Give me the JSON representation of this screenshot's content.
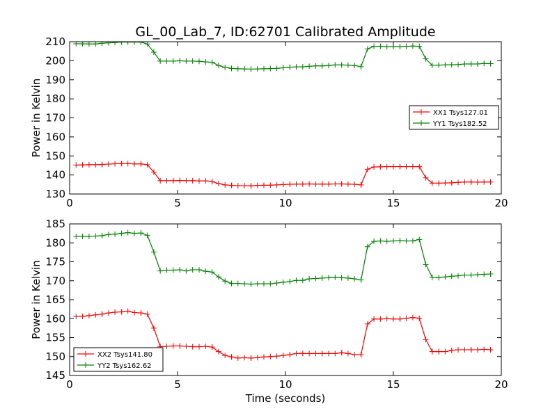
{
  "figure": {
    "title": "GL_00_Lab_7, ID:62701 Calibrated Amplitude",
    "xlabel": "Time (seconds)"
  },
  "chart_data": [
    {
      "type": "line",
      "ylabel": "Power in Kelvin",
      "xlim": [
        0,
        20
      ],
      "ylim": [
        130,
        210
      ],
      "xticks": [
        "0",
        "5",
        "10",
        "15",
        "20"
      ],
      "yticks": [
        "130",
        "140",
        "150",
        "160",
        "170",
        "180",
        "190",
        "200",
        "210"
      ],
      "legend_position": "center-right",
      "series": [
        {
          "name": "XX1 Tsys127.01",
          "color": "#ff0000",
          "x": [
            0.3,
            0.6,
            0.9,
            1.2,
            1.5,
            1.8,
            2.1,
            2.4,
            2.7,
            3.0,
            3.3,
            3.6,
            3.9,
            4.2,
            4.5,
            4.8,
            5.1,
            5.4,
            5.7,
            6.0,
            6.3,
            6.6,
            6.9,
            7.2,
            7.5,
            7.8,
            8.1,
            8.4,
            8.7,
            9.0,
            9.3,
            9.6,
            9.9,
            10.2,
            10.5,
            10.8,
            11.1,
            11.4,
            11.7,
            12.0,
            12.3,
            12.6,
            12.9,
            13.2,
            13.5,
            13.8,
            14.1,
            14.4,
            14.7,
            15.0,
            15.3,
            15.6,
            15.9,
            16.2,
            16.5,
            16.8,
            17.1,
            17.4,
            17.7,
            18.0,
            18.3,
            18.6,
            18.9,
            19.2,
            19.5
          ],
          "y": [
            145.2,
            145.3,
            145.4,
            145.4,
            145.5,
            145.7,
            145.9,
            146.0,
            146.0,
            145.8,
            145.8,
            145.4,
            141.5,
            137.0,
            137.0,
            137.0,
            137.1,
            137.0,
            137.0,
            136.9,
            136.9,
            136.5,
            135.5,
            134.8,
            134.5,
            134.4,
            134.4,
            134.3,
            134.5,
            134.6,
            134.6,
            134.8,
            135.0,
            135.1,
            135.2,
            135.2,
            135.3,
            135.2,
            135.2,
            135.2,
            135.3,
            135.3,
            135.2,
            135.1,
            134.8,
            143.0,
            144.2,
            144.3,
            144.4,
            144.4,
            144.4,
            144.4,
            144.4,
            144.4,
            138.5,
            135.7,
            135.7,
            135.8,
            135.9,
            136.1,
            136.3,
            136.3,
            136.2,
            136.3,
            136.3
          ]
        },
        {
          "name": "YY1 Tsys182.52",
          "color": "#008000",
          "x": [
            0.3,
            0.6,
            0.9,
            1.2,
            1.5,
            1.8,
            2.1,
            2.4,
            2.7,
            3.0,
            3.3,
            3.6,
            3.9,
            4.2,
            4.5,
            4.8,
            5.1,
            5.4,
            5.7,
            6.0,
            6.3,
            6.6,
            6.9,
            7.2,
            7.5,
            7.8,
            8.1,
            8.4,
            8.7,
            9.0,
            9.3,
            9.6,
            9.9,
            10.2,
            10.5,
            10.8,
            11.1,
            11.4,
            11.7,
            12.0,
            12.3,
            12.6,
            12.9,
            13.2,
            13.5,
            13.8,
            14.1,
            14.4,
            14.7,
            15.0,
            15.3,
            15.6,
            15.9,
            16.2,
            16.5,
            16.8,
            17.1,
            17.4,
            17.7,
            18.0,
            18.3,
            18.6,
            18.9,
            19.2,
            19.5
          ],
          "y": [
            208.9,
            208.9,
            208.8,
            208.8,
            209.2,
            209.4,
            209.6,
            209.8,
            209.8,
            209.8,
            209.8,
            208.8,
            204.5,
            199.8,
            199.8,
            199.8,
            200.0,
            199.8,
            199.8,
            199.7,
            199.4,
            199.2,
            197.5,
            196.5,
            196.0,
            195.8,
            195.7,
            195.6,
            195.7,
            195.8,
            195.9,
            196.0,
            196.3,
            196.6,
            196.8,
            196.8,
            197.1,
            197.3,
            197.3,
            197.5,
            197.8,
            197.8,
            197.7,
            197.5,
            196.9,
            206.2,
            207.6,
            207.6,
            207.4,
            207.4,
            207.4,
            207.6,
            207.7,
            207.6,
            201.0,
            197.6,
            197.7,
            197.8,
            197.9,
            198.0,
            198.3,
            198.3,
            198.3,
            198.6,
            198.5
          ]
        }
      ]
    },
    {
      "type": "line",
      "ylabel": "Power in Kelvin",
      "xlim": [
        0,
        20
      ],
      "ylim": [
        145,
        185
      ],
      "xticks": [
        "0",
        "5",
        "10",
        "15",
        "20"
      ],
      "yticks": [
        "145",
        "150",
        "155",
        "160",
        "165",
        "170",
        "175",
        "180",
        "185"
      ],
      "legend_position": "lower-left",
      "series": [
        {
          "name": "XX2 Tsys141.80",
          "color": "#ff0000",
          "x": [
            0.3,
            0.6,
            0.9,
            1.2,
            1.5,
            1.8,
            2.1,
            2.4,
            2.7,
            3.0,
            3.3,
            3.6,
            3.9,
            4.2,
            4.5,
            4.8,
            5.1,
            5.4,
            5.7,
            6.0,
            6.3,
            6.6,
            6.9,
            7.2,
            7.5,
            7.8,
            8.1,
            8.4,
            8.7,
            9.0,
            9.3,
            9.6,
            9.9,
            10.2,
            10.5,
            10.8,
            11.1,
            11.4,
            11.7,
            12.0,
            12.3,
            12.6,
            12.9,
            13.2,
            13.5,
            13.8,
            14.1,
            14.4,
            14.7,
            15.0,
            15.3,
            15.6,
            15.9,
            16.2,
            16.5,
            16.8,
            17.1,
            17.4,
            17.7,
            18.0,
            18.3,
            18.6,
            18.9,
            19.2,
            19.5
          ],
          "y": [
            160.6,
            160.6,
            160.8,
            161.0,
            161.2,
            161.5,
            161.7,
            161.8,
            162.0,
            161.6,
            161.5,
            161.2,
            157.5,
            152.6,
            152.7,
            152.8,
            152.8,
            152.7,
            152.6,
            152.6,
            152.7,
            152.5,
            151.3,
            150.3,
            149.9,
            149.6,
            149.7,
            149.6,
            149.7,
            149.9,
            150.0,
            150.1,
            150.3,
            150.5,
            150.8,
            150.8,
            150.8,
            150.8,
            150.8,
            150.8,
            150.8,
            151.0,
            150.8,
            150.5,
            150.5,
            158.6,
            159.9,
            159.9,
            160.0,
            159.9,
            159.9,
            160.1,
            160.3,
            160.1,
            154.5,
            151.3,
            151.3,
            151.3,
            151.6,
            151.8,
            151.8,
            151.8,
            151.8,
            151.9,
            151.8
          ]
        },
        {
          "name": "YY2 Tsys162.62",
          "color": "#008000",
          "x": [
            0.3,
            0.6,
            0.9,
            1.2,
            1.5,
            1.8,
            2.1,
            2.4,
            2.7,
            3.0,
            3.3,
            3.6,
            3.9,
            4.2,
            4.5,
            4.8,
            5.1,
            5.4,
            5.7,
            6.0,
            6.3,
            6.6,
            6.9,
            7.2,
            7.5,
            7.8,
            8.1,
            8.4,
            8.7,
            9.0,
            9.3,
            9.6,
            9.9,
            10.2,
            10.5,
            10.8,
            11.1,
            11.4,
            11.7,
            12.0,
            12.3,
            12.6,
            12.9,
            13.2,
            13.5,
            13.8,
            14.1,
            14.4,
            14.7,
            15.0,
            15.3,
            15.6,
            15.9,
            16.2,
            16.5,
            16.8,
            17.1,
            17.4,
            17.7,
            18.0,
            18.3,
            18.6,
            18.9,
            19.2,
            19.5
          ],
          "y": [
            181.7,
            181.7,
            181.7,
            181.8,
            181.9,
            182.2,
            182.3,
            182.5,
            182.7,
            182.5,
            182.6,
            182.0,
            177.6,
            172.6,
            172.8,
            172.8,
            172.9,
            172.6,
            172.9,
            172.9,
            172.5,
            172.3,
            171.0,
            169.9,
            169.3,
            169.3,
            169.2,
            169.1,
            169.2,
            169.2,
            169.2,
            169.4,
            169.6,
            169.8,
            170.1,
            170.1,
            170.5,
            170.6,
            170.7,
            170.8,
            170.9,
            170.8,
            170.7,
            170.5,
            170.2,
            179.0,
            180.4,
            180.5,
            180.4,
            180.5,
            180.6,
            180.5,
            180.5,
            180.9,
            174.3,
            170.9,
            170.8,
            171.0,
            171.2,
            171.3,
            171.5,
            171.5,
            171.6,
            171.7,
            171.8
          ]
        }
      ]
    }
  ]
}
